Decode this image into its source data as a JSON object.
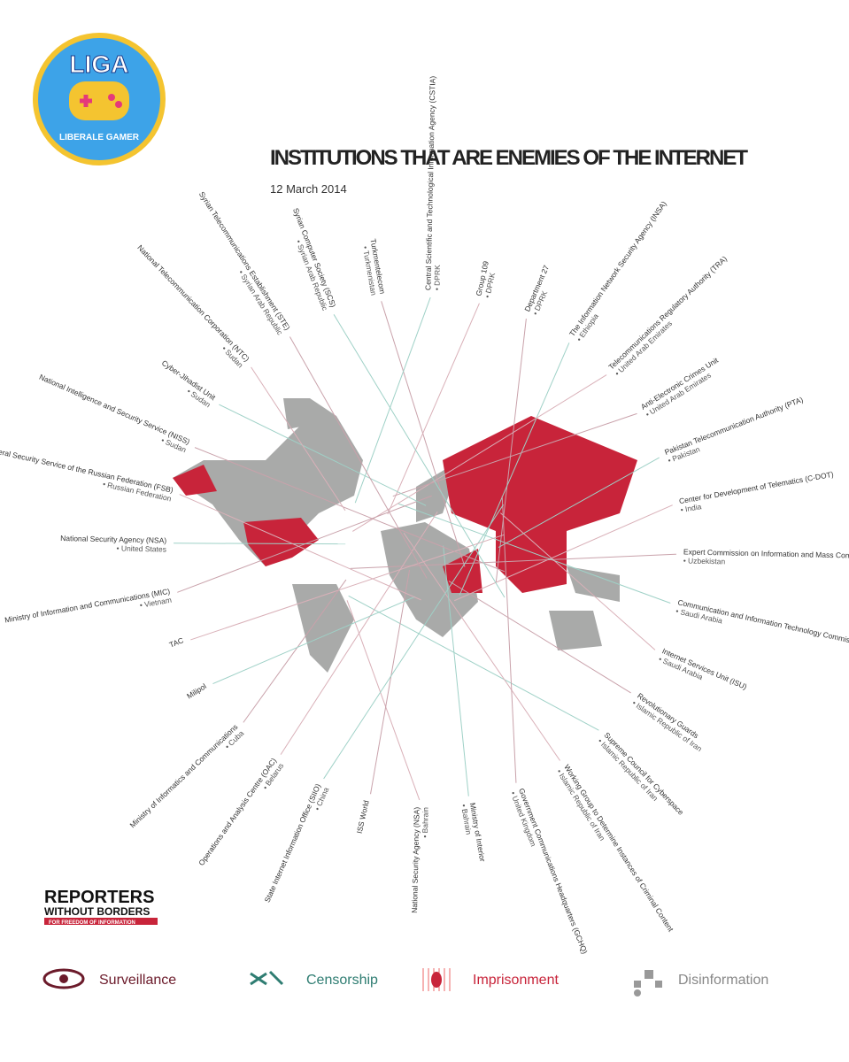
{
  "logo": {
    "title": "LIGA",
    "subtitle": "LIBERALE GAMER"
  },
  "header": {
    "title": "INSTITUTIONS THAT ARE ENEMIES OF THE INTERNET",
    "date": "12 March 2014"
  },
  "institutions": [
    {
      "name": "Turkmentelecom",
      "country": "• Turkmenistan"
    },
    {
      "name": "Central Scientific and Technological Information Agency (CSTIA)",
      "country": "• DPRK"
    },
    {
      "name": "Group 109",
      "country": "• DPRK"
    },
    {
      "name": "Department 27",
      "country": "• DPRK"
    },
    {
      "name": "The Information Network Security Agency (INSA)",
      "country": "• Ethiopia"
    },
    {
      "name": "Telecommunications Regulatory Authority (TRA)",
      "country": "• United Arab Emirates"
    },
    {
      "name": "Anti-Electronic Crimes Unit",
      "country": "• United Arab Emirates"
    },
    {
      "name": "Pakistan Telecommunication Authority (PTA)",
      "country": "• Pakistan"
    },
    {
      "name": "Center for Development of Telematics (C-DOT)",
      "country": "• India"
    },
    {
      "name": "Expert Commission on Information and Mass Communications",
      "country": "• Uzbekistan"
    },
    {
      "name": "Communication and Information Technology Commission (CITC)",
      "country": "• Saudi Arabia"
    },
    {
      "name": "Internet Services Unit (ISU)",
      "country": "• Saudi Arabia"
    },
    {
      "name": "Revolutionary Guards",
      "country": "• Islamic Republic of Iran"
    },
    {
      "name": "Supreme Council for Cyberspace",
      "country": "• Islamic Republic of Iran"
    },
    {
      "name": "Working Group to Determine Instances of Criminal Content",
      "country": "• Islamic Republic of Iran"
    },
    {
      "name": "Government Communications Headquarters (GCHQ)",
      "country": "• United Kingdom"
    },
    {
      "name": "Ministry of Interior",
      "country": "• Bahrain"
    },
    {
      "name": "National Security Agency (NSA)",
      "country": "• Bahrain"
    },
    {
      "name": "ISS World",
      "country": null
    },
    {
      "name": "State Internet Information Office (SIIO)",
      "country": "• China"
    },
    {
      "name": "Operations and Analysis Centre (OAC)",
      "country": "• Belarus"
    },
    {
      "name": "Ministry of Informatics and Communications",
      "country": "• Cuba"
    },
    {
      "name": "Milipol",
      "country": null
    },
    {
      "name": "TAC",
      "country": null
    },
    {
      "name": "Ministry of Information and Communications (MIC)",
      "country": "• Vietnam"
    },
    {
      "name": "National Security Agency (NSA)",
      "country": "• United States"
    },
    {
      "name": "Federal Security Service of the Russian Federation (FSB)",
      "country": "• Russian Federation"
    },
    {
      "name": "National Intelligence and Security Service (NISS)",
      "country": "• Sudan"
    },
    {
      "name": "Cyber-Jihadist Unit",
      "country": "• Sudan"
    },
    {
      "name": "National Telecommunication Corporation (NTC)",
      "country": "• Sudan"
    },
    {
      "name": "Syrian Telecommunications Establishment (STE)",
      "country": "• Syrian Arab Republic"
    },
    {
      "name": "Syrian Computer Society (SCS)",
      "country": "• Syrian Arab Republic"
    }
  ],
  "footer": {
    "org_line1": "REPORTERS",
    "org_line2": "WITHOUT BORDERS",
    "org_tagline": "FOR FREEDOM OF INFORMATION"
  },
  "legend": [
    "Surveillance",
    "Censorship",
    "Imprisonment",
    "Disinformation"
  ]
}
